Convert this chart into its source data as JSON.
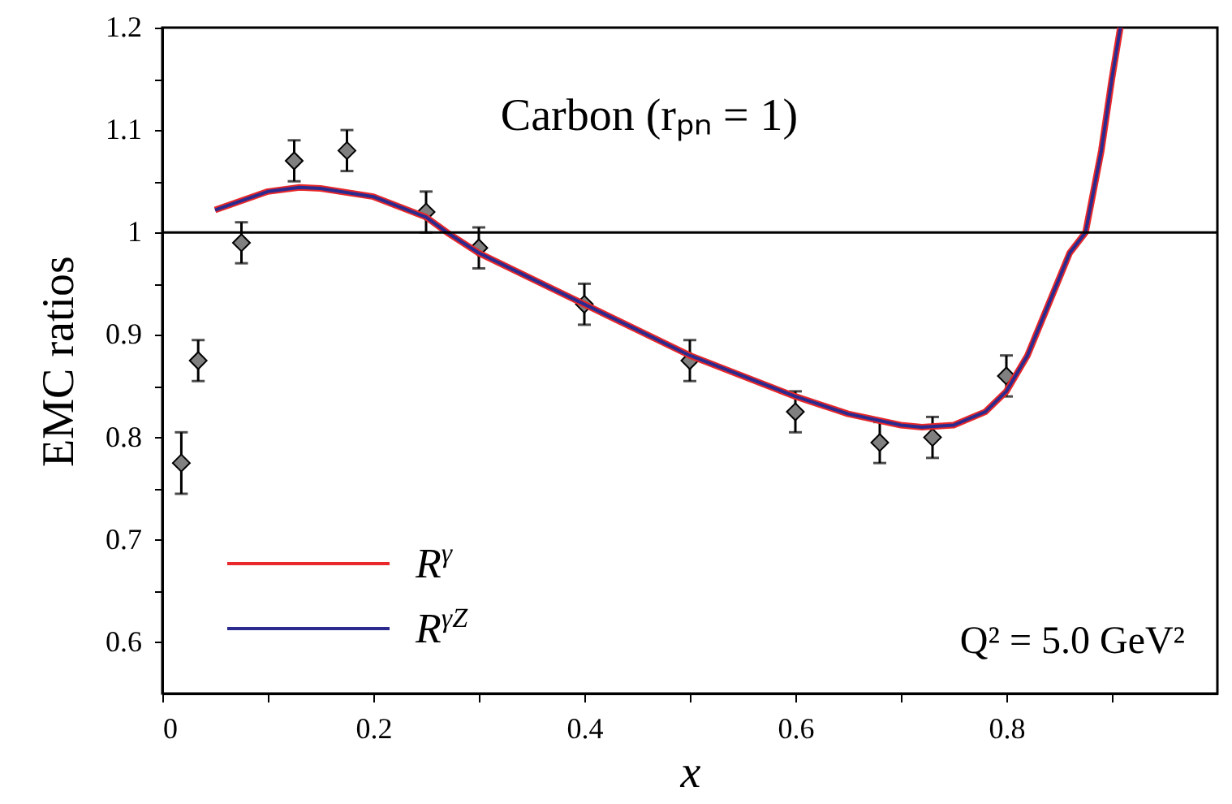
{
  "chart_data": {
    "type": "line",
    "xlabel": "x",
    "ylabel": "EMC ratios",
    "xlim": [
      0,
      1
    ],
    "xticks": [
      0,
      {
        "value": 0.1,
        "label": null
      },
      0.2,
      {
        "value": 0.3,
        "label": null
      },
      0.4,
      {
        "value": 0.5,
        "label": null
      },
      0.6,
      {
        "value": 0.7,
        "label": null
      },
      0.8,
      {
        "value": 0.9,
        "label": null
      }
    ],
    "ylim": [
      0.55,
      1.2
    ],
    "yticks": [
      0.6,
      {
        "value": 0.65,
        "label": null
      },
      0.7,
      {
        "value": 0.75,
        "label": null
      },
      0.8,
      {
        "value": 0.85,
        "label": null
      },
      0.9,
      {
        "value": 0.95,
        "label": null
      },
      1,
      {
        "value": 1.05,
        "label": null
      },
      1.1,
      {
        "value": 1.15,
        "label": null
      },
      1.2
    ],
    "grid": false,
    "legend": "bottom left",
    "line_style": "solid",
    "annotations": [
      "Carbon (rₚₙ = 1)",
      "Q² = 5.0 GeV²"
    ],
    "ref_lines": [
      {
        "axis": "y",
        "value": 1,
        "color": "#000000"
      }
    ],
    "series": [
      {
        "name": "R$^{γ}$",
        "color": "#e8282a",
        "x": [
          0.05,
          0.1,
          0.13,
          0.15,
          0.2,
          0.25,
          0.27,
          0.3,
          0.35,
          0.4,
          0.45,
          0.5,
          0.55,
          0.6,
          0.65,
          0.7,
          0.72,
          0.75,
          0.78,
          0.8,
          0.82,
          0.84,
          0.86,
          0.875,
          0.89,
          0.9,
          0.908
        ],
        "values": [
          1.022,
          1.04,
          1.044,
          1.043,
          1.035,
          1.015,
          1.0,
          0.98,
          0.955,
          0.93,
          0.905,
          0.88,
          0.86,
          0.84,
          0.823,
          0.812,
          0.81,
          0.812,
          0.825,
          0.845,
          0.88,
          0.93,
          0.98,
          1.0,
          1.08,
          1.15,
          1.2
        ]
      },
      {
        "name": "R$^{γZ}$",
        "color": "#2b2b8f",
        "x": [
          0.05,
          0.1,
          0.13,
          0.15,
          0.2,
          0.25,
          0.27,
          0.3,
          0.35,
          0.4,
          0.45,
          0.5,
          0.55,
          0.6,
          0.65,
          0.7,
          0.72,
          0.75,
          0.78,
          0.8,
          0.82,
          0.84,
          0.86,
          0.875,
          0.89,
          0.9,
          0.908
        ],
        "values": [
          1.022,
          1.04,
          1.044,
          1.043,
          1.035,
          1.015,
          1.0,
          0.98,
          0.955,
          0.93,
          0.905,
          0.88,
          0.86,
          0.84,
          0.823,
          0.812,
          0.81,
          0.812,
          0.825,
          0.845,
          0.88,
          0.93,
          0.98,
          1.0,
          1.08,
          1.15,
          1.2
        ]
      },
      {
        "type": "scatter",
        "marker": "diamond",
        "color": "#808080",
        "x": [
          0.018,
          0.034,
          0.075,
          0.125,
          0.175,
          0.25,
          0.3,
          0.4,
          0.5,
          0.6,
          0.68,
          0.73,
          0.8
        ],
        "values": [
          0.775,
          0.875,
          0.99,
          1.07,
          1.08,
          1.02,
          0.985,
          0.93,
          0.875,
          0.825,
          0.795,
          0.8,
          0.86
        ],
        "errors": [
          0.03,
          0.02,
          0.02,
          0.02,
          0.02,
          0.02,
          0.02,
          0.02,
          0.02,
          0.02,
          0.02,
          0.02,
          0.02
        ]
      }
    ]
  }
}
